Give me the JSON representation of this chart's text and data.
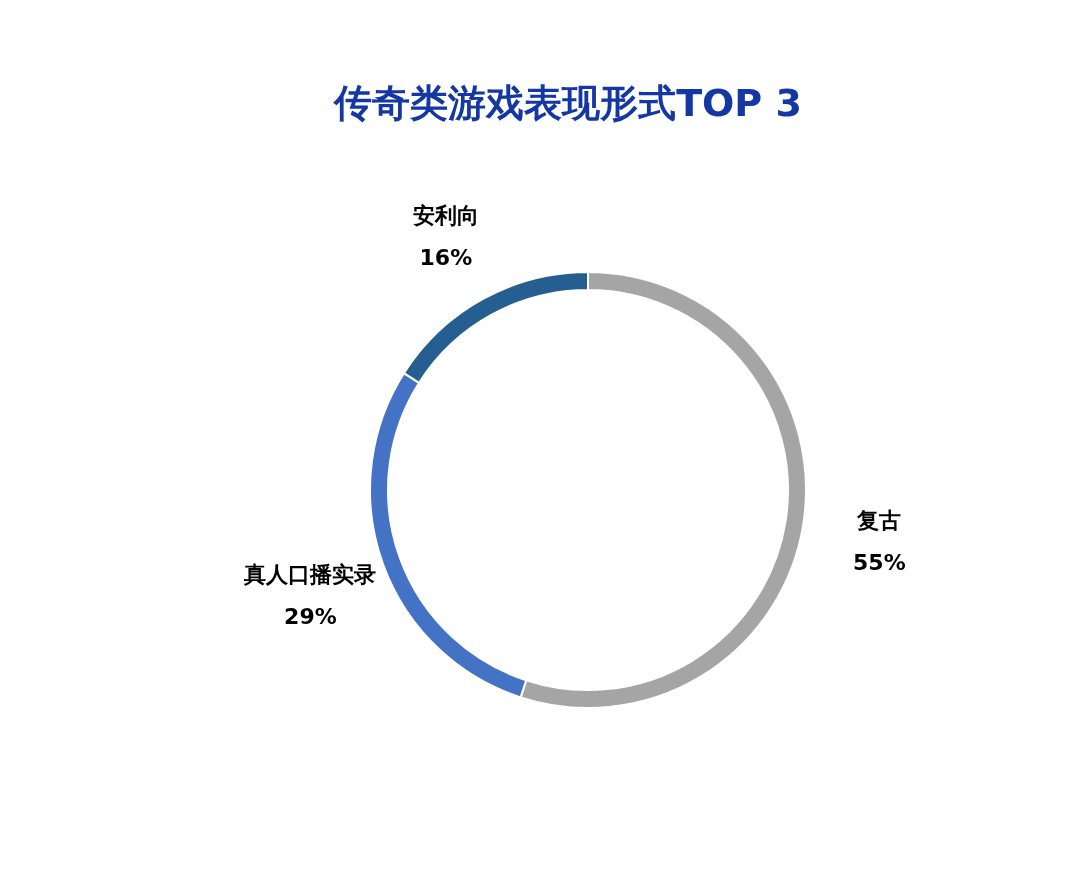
{
  "chart_data": {
    "type": "donut",
    "title": "传奇类游戏表现形式TOP 3",
    "categories": [
      "复古",
      "真人口播实录",
      "安利向"
    ],
    "values": [
      55,
      29,
      16
    ],
    "value_labels": [
      "55%",
      "29%",
      "16%"
    ],
    "colors": [
      "#a5a5a5",
      "#4472c4",
      "#255e91"
    ],
    "legend": false
  }
}
